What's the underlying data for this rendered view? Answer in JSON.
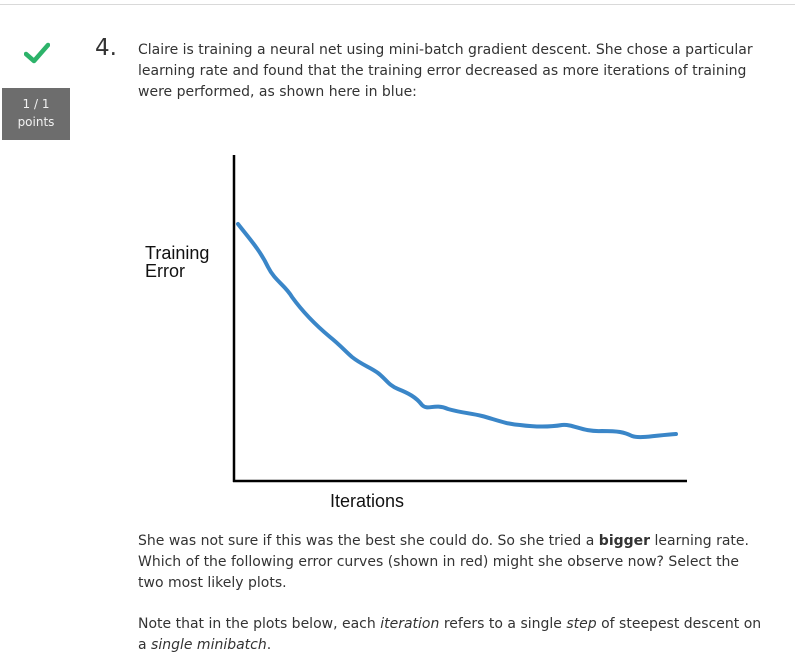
{
  "question": {
    "number": "4.",
    "status": "correct",
    "score": {
      "line1": "1 / 1",
      "line2": "points"
    },
    "intro": "Claire is training a neural net using mini-batch gradient descent. She chose a particular learning rate and found that the training error decreased as more iterations of training were performed, as shown here in blue:",
    "followup": {
      "before": "She was not sure if this was the best she could do. So she tried a ",
      "bold": "bigger",
      "after": " learning rate. Which of the following error curves (shown in red) might she observe now? Select the two most likely plots."
    },
    "note": {
      "t1": "Note that in the plots below, each ",
      "e1": "iteration",
      "t2": " refers to a single ",
      "e2": "step",
      "t3": " of steepest descent on a ",
      "e3": "single minibatch",
      "t4": "."
    }
  },
  "figure": {
    "ylabel_line1": "Training",
    "ylabel_line2": "Error",
    "xlabel": "Iterations",
    "curve_color": "#3a86c8",
    "axis_color": "#000000"
  },
  "colors": {
    "check": "#2db36a",
    "badge_bg": "#6d6d6d"
  }
}
